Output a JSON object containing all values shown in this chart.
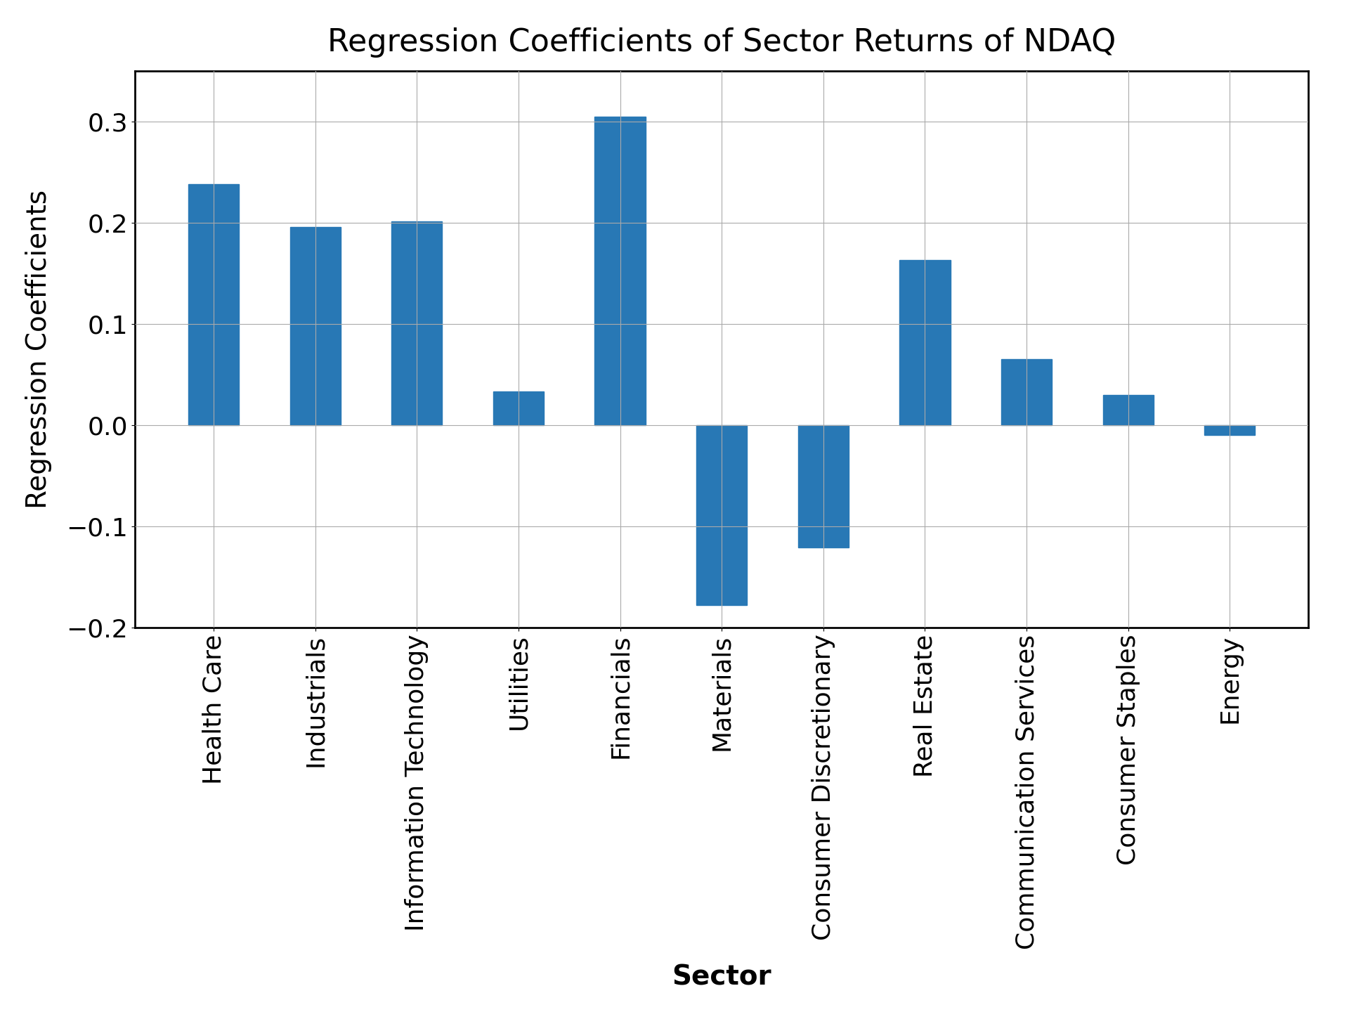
{
  "categories": [
    "Health Care",
    "Industrials",
    "Information Technology",
    "Utilities",
    "Financials",
    "Materials",
    "Consumer Discretionary",
    "Real Estate",
    "Communication Services",
    "Consumer Staples",
    "Energy"
  ],
  "values": [
    0.238,
    0.196,
    0.201,
    0.033,
    0.305,
    -0.178,
    -0.121,
    0.163,
    0.065,
    0.03,
    -0.01
  ],
  "bar_color": "#2878b5",
  "title": "Regression Coefficients of Sector Returns of NDAQ",
  "xlabel": "Sector",
  "ylabel": "Regression Coefficients",
  "title_fontsize": 32,
  "label_fontsize": 28,
  "tick_fontsize": 26,
  "ylim": [
    -0.2,
    0.35
  ],
  "yticks": [
    -0.1,
    0.0,
    0.1,
    0.2,
    0.3
  ],
  "background_color": "#ffffff",
  "grid": true,
  "bar_width": 0.5
}
